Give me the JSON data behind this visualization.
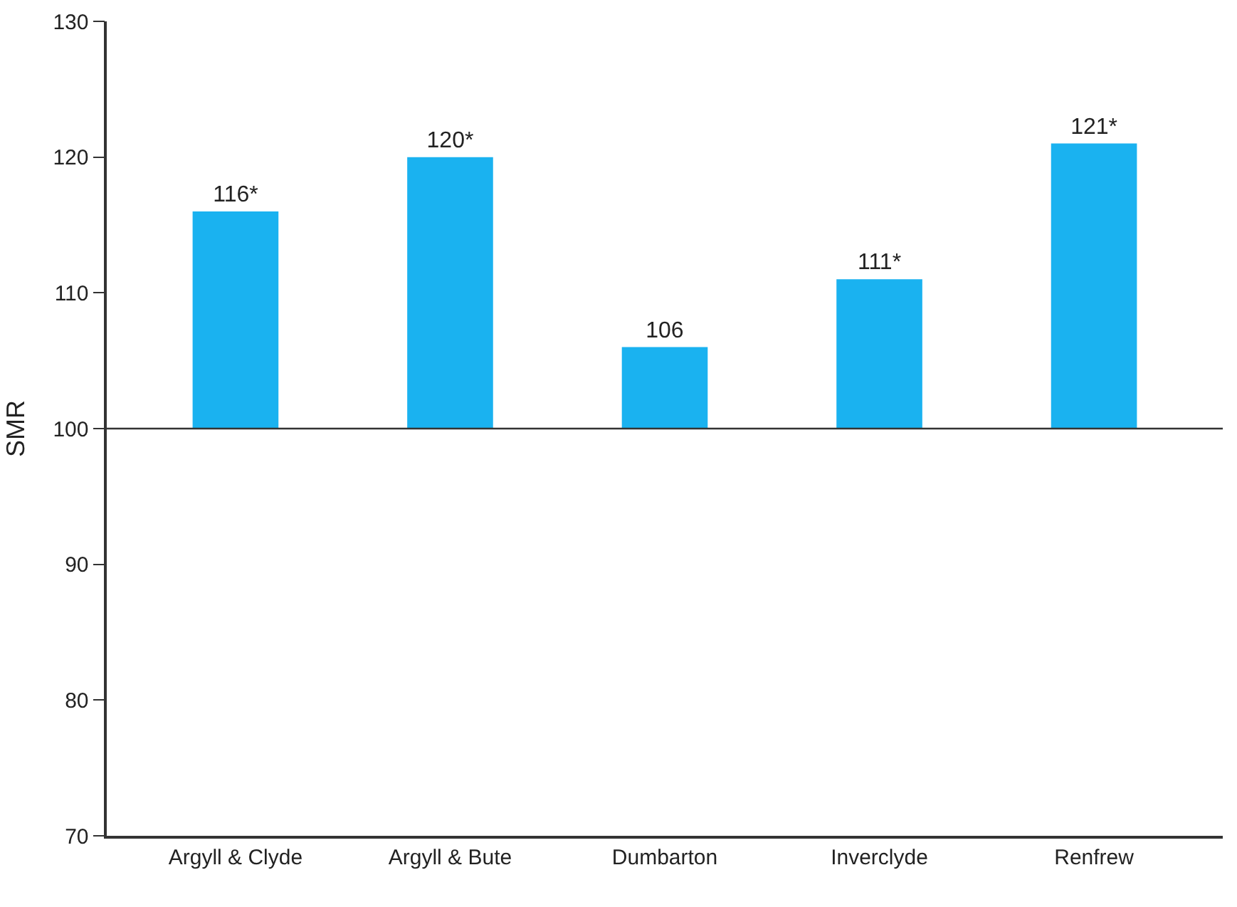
{
  "chart_data": {
    "type": "bar",
    "ylabel": "SMR",
    "categories": [
      "Argyll & Clyde",
      "Argyll & Bute",
      "Dumbarton",
      "Inverclyde",
      "Renfrew"
    ],
    "base": [
      100,
      100,
      100,
      100,
      100
    ],
    "values": [
      16,
      20,
      6,
      11,
      21
    ],
    "value_labels": [
      "116*",
      "120*",
      "106",
      "111*",
      "121*"
    ],
    "color": "#1ab2f0",
    "ylim": [
      70,
      130
    ],
    "yticks": [
      70,
      80,
      90,
      100,
      110,
      120,
      130
    ],
    "ref_lines": [
      {
        "axis": "y",
        "value": 100,
        "color": "#333333"
      }
    ],
    "grid": false
  }
}
